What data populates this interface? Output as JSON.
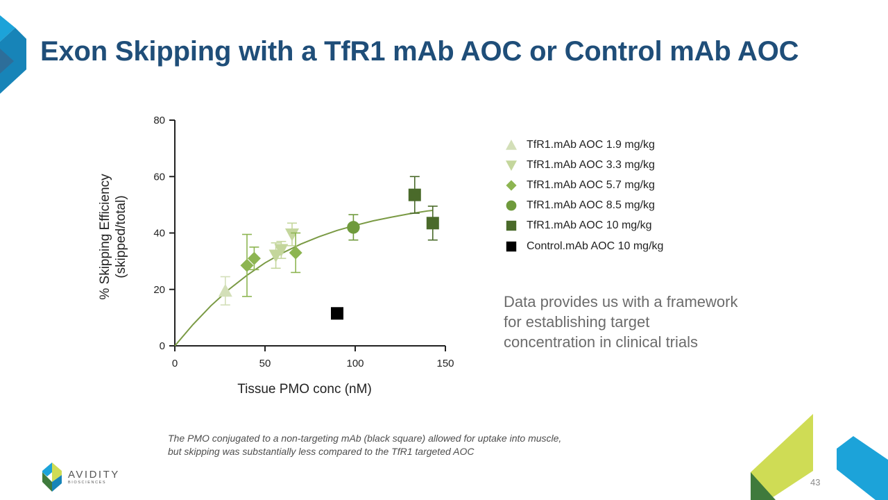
{
  "slide": {
    "title": "Exon Skipping with a TfR1 mAb AOC or Control mAb AOC",
    "note_lines": [
      "Data provides us with a framework",
      "for establishing target",
      "concentration in clinical trials"
    ],
    "caption_lines": [
      "The PMO conjugated to a non-targeting mAb (black square) allowed for uptake into muscle,",
      "but skipping was substantially less compared to the TfR1 targeted AOC"
    ],
    "logo": {
      "name": "AVIDITY",
      "sub": "BIOSCIENCES"
    },
    "page_number": "43",
    "colors": {
      "title": "#1f4e79",
      "accent_blue": "#1ca3d9",
      "accent_lime": "#cfdc55",
      "accent_green": "#3f7a3c"
    }
  },
  "chart_data": {
    "type": "scatter",
    "xlabel": "Tissue PMO conc (nM)",
    "ylabel_lines": [
      "% Skipping Efficiency",
      "(skipped/total)"
    ],
    "xlim": [
      0,
      150
    ],
    "ylim": [
      0,
      80
    ],
    "xticks": [
      0,
      50,
      100,
      150
    ],
    "yticks": [
      0,
      20,
      40,
      60,
      80
    ],
    "grid": false,
    "legend_position": "right",
    "series": [
      {
        "name": "TfR1.mAb AOC 1.9 mg/kg",
        "marker": "triangle-up",
        "color": "#d3dfb8",
        "points": [
          {
            "x": 28,
            "y": 19.5,
            "err": 5
          }
        ]
      },
      {
        "name": "TfR1.mAb AOC 3.3 mg/kg",
        "marker": "triangle-down",
        "color": "#c4d69c",
        "points": [
          {
            "x": 56,
            "y": 32,
            "err": 4.5
          },
          {
            "x": 59,
            "y": 34,
            "err": 3
          },
          {
            "x": 65,
            "y": 39.5,
            "err": 4
          }
        ]
      },
      {
        "name": "TfR1.mAb AOC 5.7 mg/kg",
        "marker": "diamond",
        "color": "#8db551",
        "points": [
          {
            "x": 40,
            "y": 28.5,
            "err": 11
          },
          {
            "x": 44,
            "y": 31,
            "err": 4
          },
          {
            "x": 67,
            "y": 33,
            "err": 7
          }
        ]
      },
      {
        "name": "TfR1.mAb AOC 8.5 mg/kg",
        "marker": "circle",
        "color": "#6f9a3c",
        "points": [
          {
            "x": 99,
            "y": 42,
            "err": 4.5
          }
        ]
      },
      {
        "name": "TfR1.mAb AOC 10 mg/kg",
        "marker": "square",
        "color": "#4a6a2a",
        "points": [
          {
            "x": 133,
            "y": 53.5,
            "err": 6.5
          },
          {
            "x": 143,
            "y": 43.5,
            "err": 6
          }
        ]
      },
      {
        "name": "Control.mAb AOC 10 mg/kg",
        "marker": "square",
        "color": "#000000",
        "points": [
          {
            "x": 90,
            "y": 11.5,
            "err": 0
          }
        ]
      }
    ],
    "fit_curve": {
      "color": "#7a9a44",
      "points": [
        [
          0,
          0
        ],
        [
          10,
          7.5
        ],
        [
          20,
          14.2
        ],
        [
          30,
          20
        ],
        [
          40,
          25
        ],
        [
          50,
          29.4
        ],
        [
          60,
          33
        ],
        [
          70,
          36.1
        ],
        [
          80,
          38.7
        ],
        [
          90,
          40.9
        ],
        [
          100,
          42.7
        ],
        [
          110,
          44.3
        ],
        [
          120,
          45.6
        ],
        [
          130,
          46.8
        ],
        [
          140,
          47.8
        ],
        [
          143,
          48
        ]
      ]
    }
  }
}
